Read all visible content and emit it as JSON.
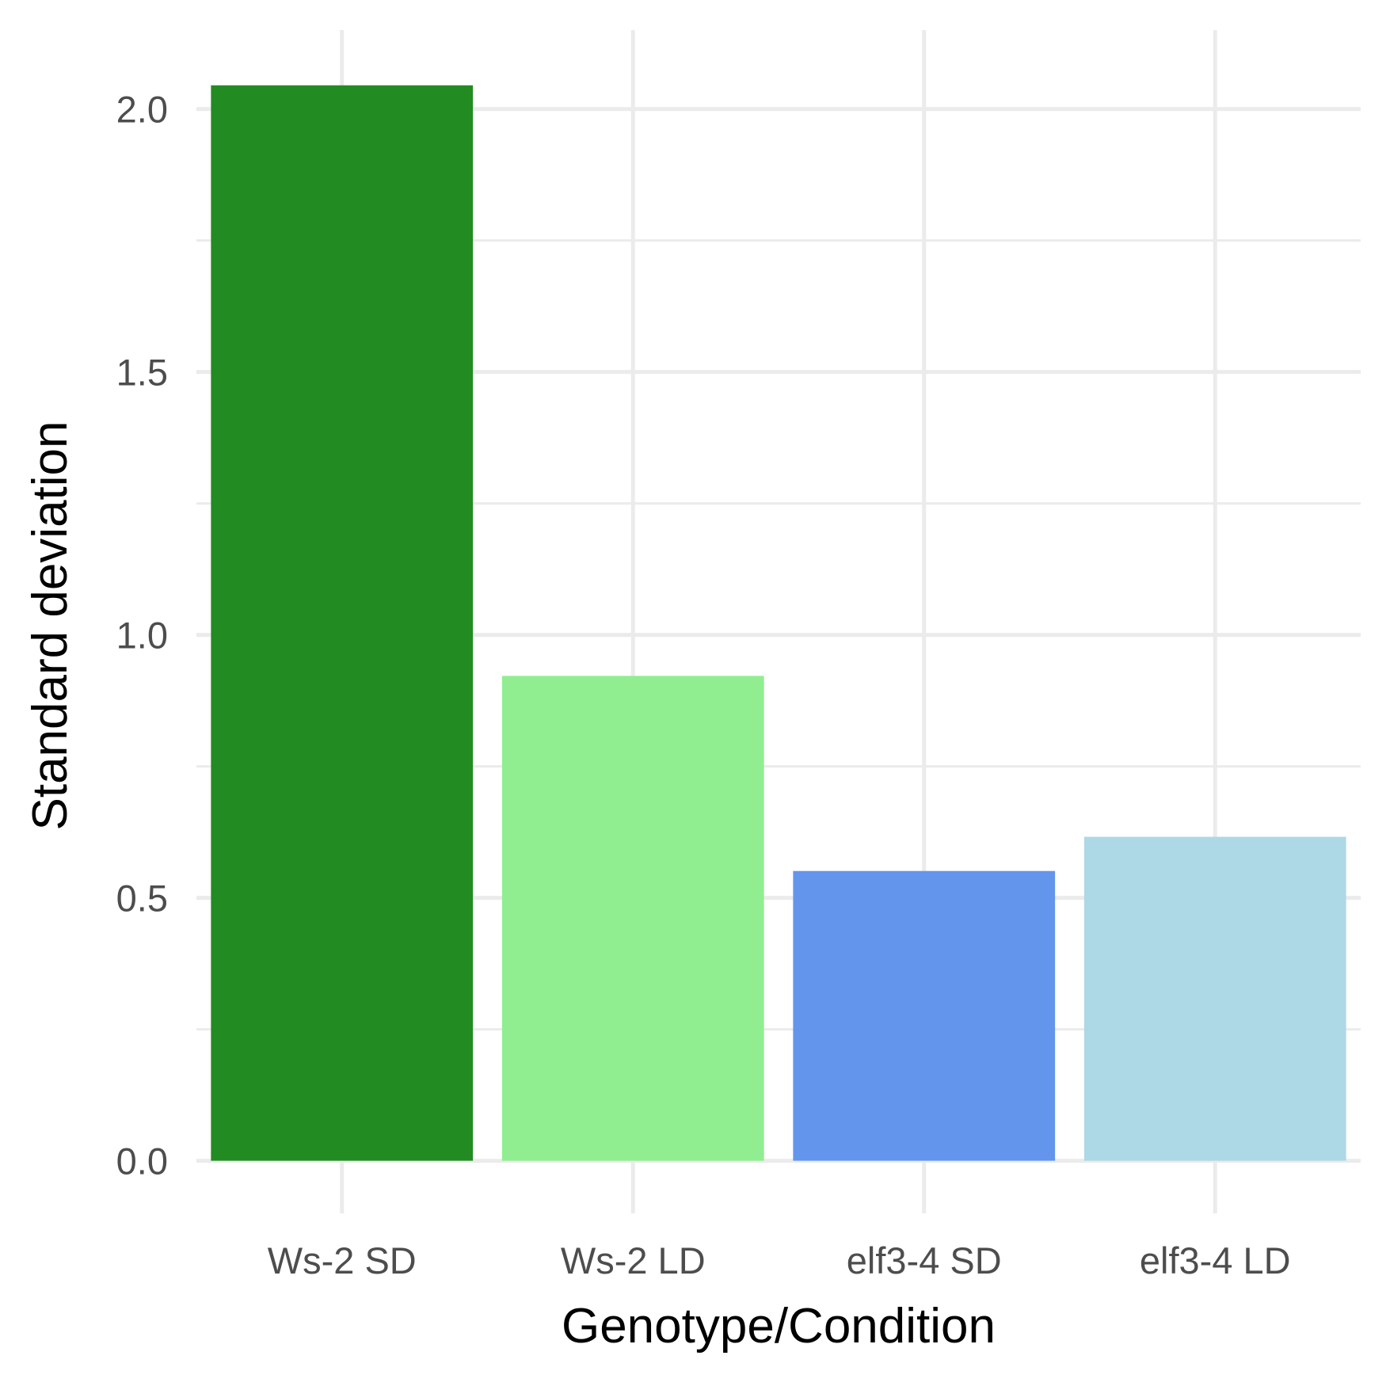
{
  "chart_data": {
    "type": "bar",
    "title": "",
    "xlabel": "Genotype/Condition",
    "ylabel": "Standard deviation",
    "categories": [
      "Ws-2 SD",
      "Ws-2 LD",
      "elf3-4 SD",
      "elf3-4 LD"
    ],
    "values": [
      2.045,
      0.922,
      0.551,
      0.616
    ],
    "colors": [
      "#228B22",
      "#90EE90",
      "#6495ED",
      "#ADD8E6"
    ],
    "ylim": [
      -0.1,
      2.15
    ],
    "yticks": [
      0.0,
      0.5,
      1.0,
      1.5,
      2.0
    ],
    "ytick_labels": [
      "0.0",
      "0.5",
      "1.0",
      "1.5",
      "2.0"
    ],
    "grid": true,
    "legend": "none"
  }
}
